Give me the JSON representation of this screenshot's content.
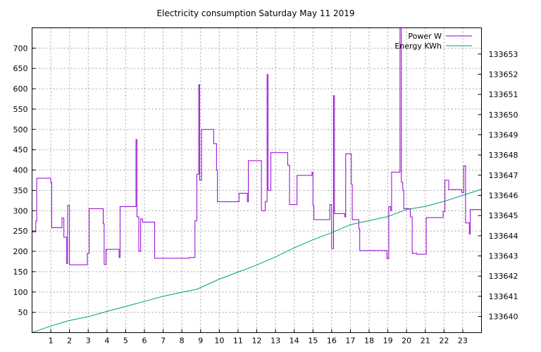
{
  "chart_data": {
    "type": "line",
    "title": "Electricity consumption Saturday May 11 2019",
    "xlim": [
      0,
      24
    ],
    "ylim": [
      0,
      750
    ],
    "y2lim": [
      133639.2,
      133654.3
    ],
    "x_ticks": [
      1,
      2,
      3,
      4,
      5,
      6,
      7,
      8,
      9,
      10,
      11,
      12,
      13,
      14,
      15,
      16,
      17,
      18,
      19,
      20,
      21,
      22,
      23
    ],
    "y_ticks": [
      50,
      100,
      150,
      200,
      250,
      300,
      350,
      400,
      450,
      500,
      550,
      600,
      650,
      700
    ],
    "y2_ticks": [
      133640,
      133641,
      133642,
      133643,
      133644,
      133645,
      133646,
      133647,
      133648,
      133649,
      133650,
      133651,
      133652,
      133653
    ],
    "grid": true,
    "legend_position": "top-right",
    "series": [
      {
        "name": "Power W",
        "axis": "y1",
        "color": "#9400d3",
        "step": true,
        "points": [
          [
            0,
            248
          ],
          [
            0.2,
            275
          ],
          [
            0.25,
            380
          ],
          [
            1.0,
            370
          ],
          [
            1.05,
            258
          ],
          [
            1.6,
            282
          ],
          [
            1.7,
            235
          ],
          [
            1.85,
            170
          ],
          [
            1.9,
            313
          ],
          [
            2.0,
            167
          ],
          [
            2.95,
            195
          ],
          [
            3.05,
            305
          ],
          [
            3.8,
            268
          ],
          [
            3.85,
            168
          ],
          [
            3.95,
            205
          ],
          [
            4.65,
            185
          ],
          [
            4.7,
            310
          ],
          [
            5.55,
            475
          ],
          [
            5.6,
            285
          ],
          [
            5.7,
            200
          ],
          [
            5.8,
            280
          ],
          [
            5.9,
            272
          ],
          [
            6.55,
            183
          ],
          [
            8.4,
            185
          ],
          [
            8.7,
            275
          ],
          [
            8.8,
            390
          ],
          [
            8.9,
            610
          ],
          [
            8.95,
            375
          ],
          [
            9.05,
            500
          ],
          [
            9.7,
            465
          ],
          [
            9.85,
            400
          ],
          [
            9.9,
            322
          ],
          [
            11.05,
            343
          ],
          [
            11.5,
            322
          ],
          [
            11.55,
            423
          ],
          [
            12.25,
            300
          ],
          [
            12.45,
            322
          ],
          [
            12.55,
            635
          ],
          [
            12.6,
            350
          ],
          [
            12.75,
            443
          ],
          [
            13.65,
            412
          ],
          [
            13.75,
            315
          ],
          [
            14.15,
            387
          ],
          [
            14.95,
            395
          ],
          [
            15.0,
            313
          ],
          [
            15.05,
            278
          ],
          [
            15.9,
            315
          ],
          [
            16.0,
            207
          ],
          [
            16.1,
            583
          ],
          [
            16.15,
            293
          ],
          [
            16.7,
            285
          ],
          [
            16.75,
            440
          ],
          [
            17.05,
            365
          ],
          [
            17.1,
            278
          ],
          [
            17.45,
            255
          ],
          [
            17.5,
            202
          ],
          [
            18.95,
            182
          ],
          [
            19.05,
            310
          ],
          [
            19.15,
            300
          ],
          [
            19.2,
            395
          ],
          [
            19.65,
            770
          ],
          [
            19.72,
            370
          ],
          [
            19.8,
            350
          ],
          [
            19.85,
            305
          ],
          [
            20.2,
            285
          ],
          [
            20.3,
            195
          ],
          [
            20.55,
            193
          ],
          [
            21.05,
            283
          ],
          [
            21.95,
            298
          ],
          [
            22.05,
            375
          ],
          [
            22.25,
            352
          ],
          [
            22.95,
            345
          ],
          [
            23.05,
            410
          ],
          [
            23.15,
            270
          ],
          [
            23.35,
            243
          ],
          [
            23.4,
            303
          ],
          [
            24.0,
            303
          ]
        ]
      },
      {
        "name": "Energy KWh",
        "axis": "y2",
        "color": "#009e73",
        "step": false,
        "points": [
          [
            0,
            133639.2
          ],
          [
            1,
            133639.53
          ],
          [
            2,
            133639.8
          ],
          [
            3,
            133639.99
          ],
          [
            4,
            133640.25
          ],
          [
            5,
            133640.5
          ],
          [
            6,
            133640.75
          ],
          [
            7,
            133641.0
          ],
          [
            8,
            133641.2
          ],
          [
            8.8,
            133641.35
          ],
          [
            10,
            133641.85
          ],
          [
            11,
            133642.2
          ],
          [
            12,
            133642.55
          ],
          [
            13,
            133642.95
          ],
          [
            14,
            133643.4
          ],
          [
            15,
            133643.8
          ],
          [
            16,
            133644.15
          ],
          [
            17,
            133644.55
          ],
          [
            18,
            133644.75
          ],
          [
            19,
            133644.95
          ],
          [
            19.7,
            133645.2
          ],
          [
            20,
            133645.3
          ],
          [
            21,
            133645.45
          ],
          [
            22,
            133645.7
          ],
          [
            23,
            133646.0
          ],
          [
            24,
            133646.3
          ]
        ]
      }
    ]
  }
}
